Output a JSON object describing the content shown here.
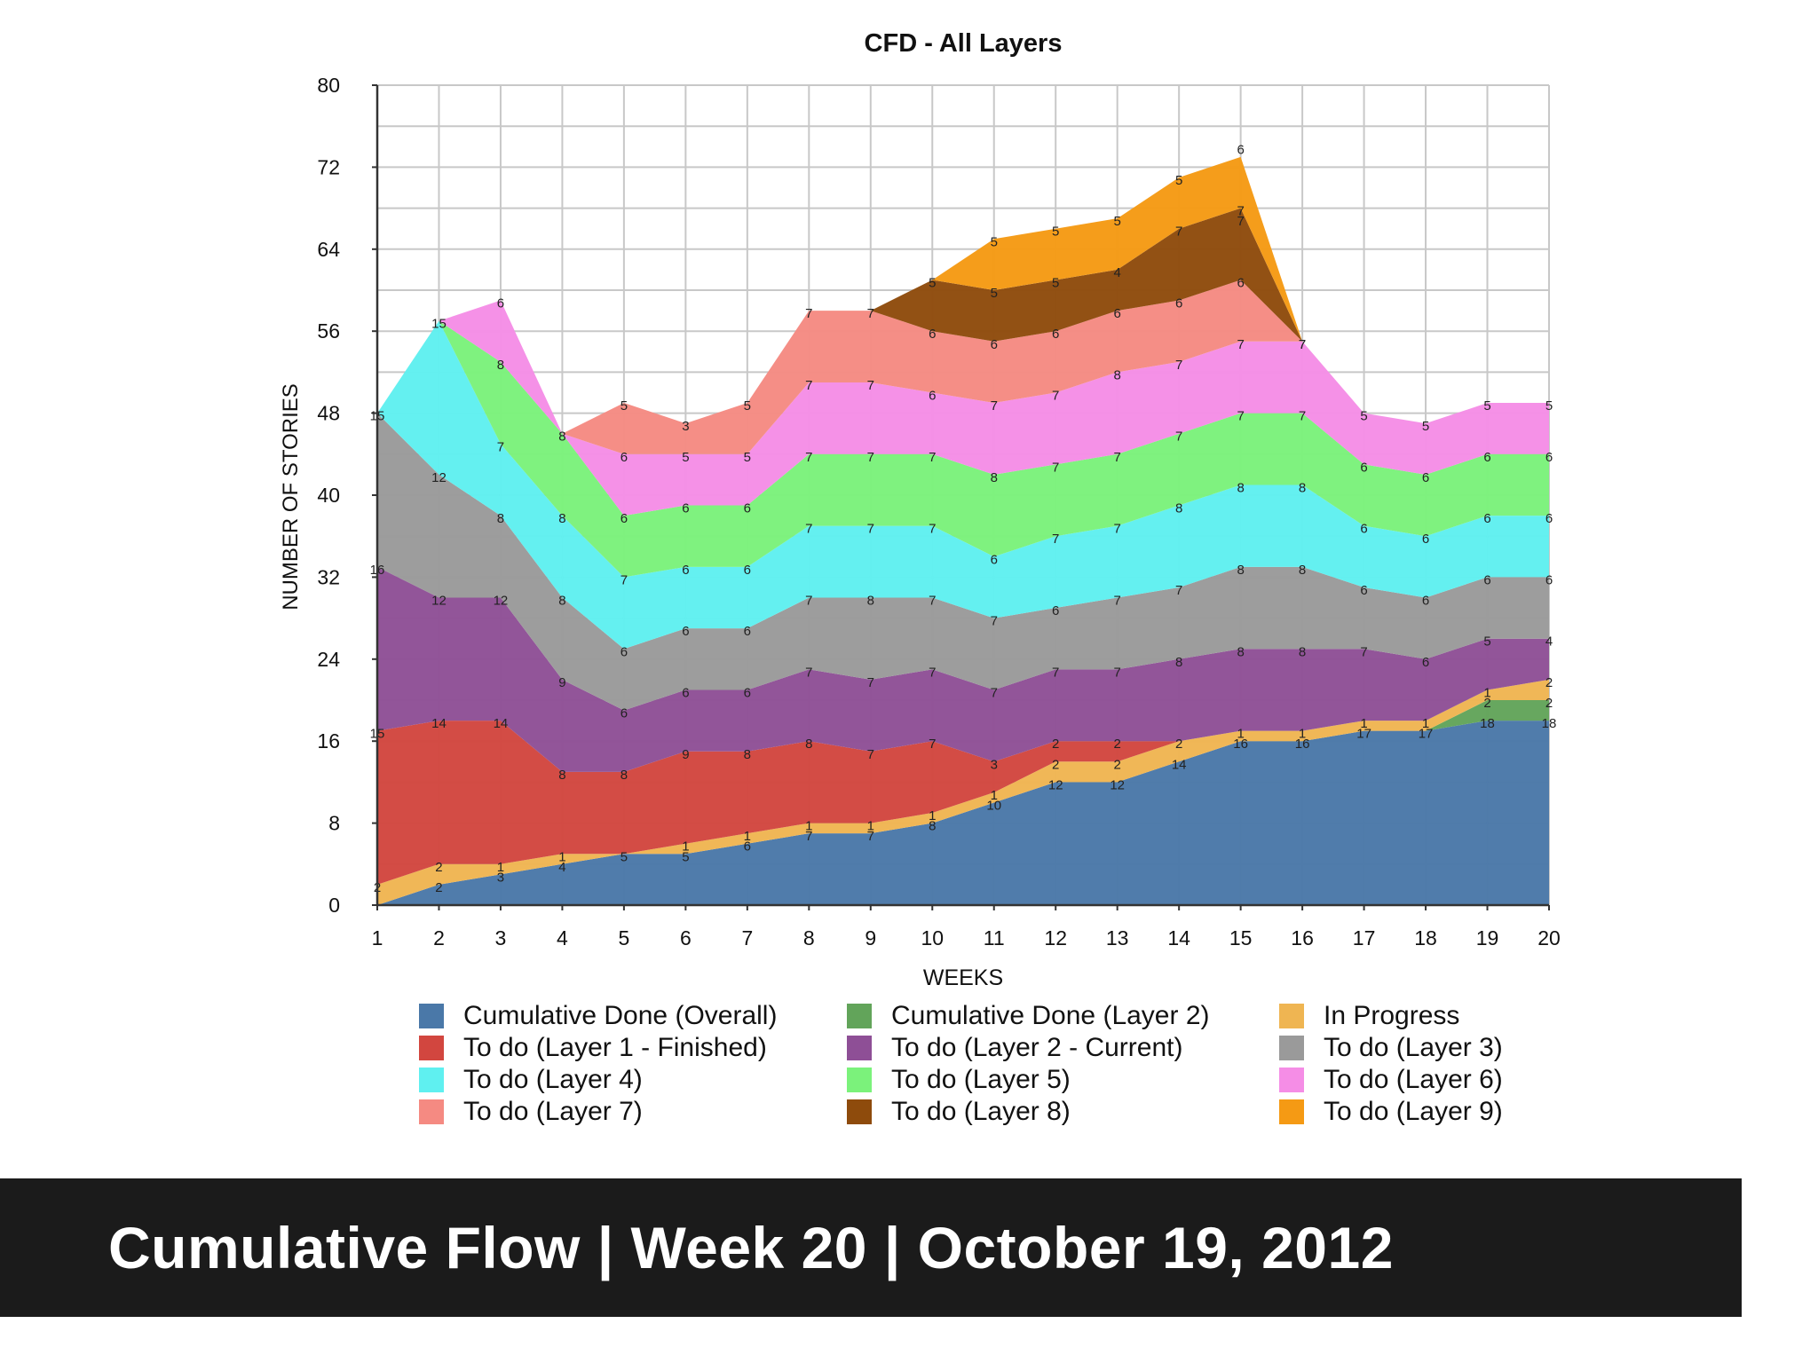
{
  "caption": "Cumulative Flow | Week 20 | October 19, 2012",
  "chart_data": {
    "type": "area",
    "stacked": true,
    "title": "CFD - All Layers",
    "xlabel": "WEEKS",
    "ylabel": "NUMBER OF STORIES",
    "xlim": [
      1,
      20
    ],
    "ylim": [
      0,
      80
    ],
    "x": [
      1,
      2,
      3,
      4,
      5,
      6,
      7,
      8,
      9,
      10,
      11,
      12,
      13,
      14,
      15,
      16,
      17,
      18,
      19,
      20
    ],
    "y_ticks": [
      0,
      8,
      16,
      24,
      32,
      40,
      48,
      56,
      64,
      72,
      80
    ],
    "grid": true,
    "legend_position": "bottom",
    "series": [
      {
        "name": "Cumulative Done (Overall)",
        "color": "#4a78a8",
        "values": [
          0,
          2,
          3,
          4,
          5,
          5,
          6,
          7,
          7,
          8,
          10,
          12,
          12,
          14,
          16,
          16,
          17,
          17,
          18,
          18
        ],
        "labels": [
          "",
          "2",
          "3",
          "4",
          "5",
          "5",
          "6",
          "7",
          "7",
          "8",
          "10",
          "12",
          "12",
          "14",
          "16",
          "16",
          "17",
          "17",
          "18",
          "18"
        ]
      },
      {
        "name": "Cumulative Done (Layer 2)",
        "color": "#62a45a",
        "values": [
          0,
          0,
          0,
          0,
          0,
          0,
          0,
          0,
          0,
          0,
          0,
          0,
          0,
          0,
          0,
          0,
          0,
          0,
          2,
          2
        ],
        "labels": [
          "",
          "",
          "",
          "",
          "",
          "",
          "",
          "",
          "",
          "",
          "",
          "",
          "",
          "",
          "",
          "",
          "",
          "",
          "2",
          "2"
        ]
      },
      {
        "name": "In Progress",
        "color": "#efb552",
        "values": [
          2,
          2,
          1,
          1,
          0,
          1,
          1,
          1,
          1,
          1,
          1,
          2,
          2,
          2,
          1,
          1,
          1,
          1,
          1,
          2
        ],
        "labels": [
          "2",
          "2",
          "1",
          "1",
          "",
          "1",
          "1",
          "1",
          "1",
          "1",
          "1",
          "2",
          "2",
          "2",
          "1",
          "1",
          "1",
          "1",
          "1",
          "2"
        ]
      },
      {
        "name": "To do (Layer 1 - Finished)",
        "color": "#d2463f",
        "values": [
          15,
          14,
          14,
          8,
          8,
          9,
          8,
          8,
          7,
          7,
          3,
          2,
          2,
          0,
          0,
          0,
          0,
          0,
          0,
          0
        ],
        "labels": [
          "15",
          "14",
          "14",
          "8",
          "8",
          "9",
          "8",
          "8",
          "7",
          "7",
          "3",
          "2",
          "2",
          "",
          "",
          "",
          "",
          "",
          "",
          ""
        ]
      },
      {
        "name": "To do (Layer 2 - Current)",
        "color": "#8e4f96",
        "values": [
          16,
          12,
          12,
          9,
          6,
          6,
          6,
          7,
          7,
          7,
          7,
          7,
          7,
          8,
          8,
          8,
          7,
          6,
          5,
          4
        ],
        "labels": [
          "16",
          "12",
          "12",
          "9",
          "6",
          "6",
          "6",
          "7",
          "7",
          "7",
          "7",
          "7",
          "7",
          "8",
          "8",
          "8",
          "7",
          "6",
          "5",
          "4"
        ]
      },
      {
        "name": "To do (Layer 3)",
        "color": "#9a9a9a",
        "values": [
          15,
          12,
          8,
          8,
          6,
          6,
          6,
          7,
          8,
          7,
          7,
          6,
          7,
          7,
          8,
          8,
          6,
          6,
          6,
          6
        ],
        "labels": [
          "15",
          "12",
          "8",
          "8",
          "6",
          "6",
          "6",
          "7",
          "8",
          "7",
          "7",
          "6",
          "7",
          "7",
          "8",
          "8",
          "6",
          "6",
          "6",
          "6"
        ]
      },
      {
        "name": "To do (Layer 4)",
        "color": "#5ff0f0",
        "values": [
          0,
          15,
          7,
          8,
          7,
          6,
          6,
          7,
          7,
          7,
          6,
          7,
          7,
          8,
          8,
          8,
          6,
          6,
          6,
          6
        ],
        "labels": [
          "",
          "15",
          "7",
          "8",
          "7",
          "6",
          "6",
          "7",
          "7",
          "7",
          "6",
          "7",
          "7",
          "8",
          "8",
          "8",
          "6",
          "6",
          "6",
          "6"
        ]
      },
      {
        "name": "To do (Layer 5)",
        "color": "#7bf27b",
        "values": [
          0,
          0,
          8,
          8,
          6,
          6,
          6,
          7,
          7,
          7,
          8,
          7,
          7,
          7,
          7,
          7,
          6,
          6,
          6,
          6
        ],
        "labels": [
          "",
          "",
          "8",
          "8",
          "6",
          "6",
          "6",
          "7",
          "7",
          "7",
          "8",
          "7",
          "7",
          "7",
          "7",
          "7",
          "6",
          "6",
          "6",
          "6"
        ]
      },
      {
        "name": "To do (Layer 6)",
        "color": "#f58de6",
        "values": [
          0,
          0,
          6,
          0,
          6,
          5,
          5,
          7,
          7,
          6,
          7,
          7,
          8,
          7,
          7,
          7,
          5,
          5,
          5,
          5
        ],
        "labels": [
          "",
          "",
          "6",
          "",
          "6",
          "5",
          "5",
          "7",
          "7",
          "6",
          "7",
          "7",
          "8",
          "7",
          "7",
          "7",
          "5",
          "5",
          "5",
          "5"
        ]
      },
      {
        "name": "To do (Layer 7)",
        "color": "#f58a82",
        "values": [
          0,
          0,
          0,
          0,
          5,
          3,
          5,
          7,
          7,
          6,
          6,
          6,
          6,
          6,
          6,
          0,
          0,
          0,
          0,
          0
        ],
        "labels": [
          "",
          "",
          "",
          "",
          "5",
          "3",
          "5",
          "7",
          "7",
          "6",
          "6",
          "6",
          "6",
          "6",
          "6",
          "",
          "",
          "",
          "",
          ""
        ]
      },
      {
        "name": "To do (Layer 8)",
        "color": "#8e4b0c",
        "values": [
          0,
          0,
          0,
          0,
          0,
          0,
          0,
          0,
          0,
          5,
          5,
          5,
          4,
          7,
          7,
          0,
          0,
          0,
          0,
          0
        ],
        "labels": [
          "",
          "",
          "",
          "",
          "",
          "",
          "",
          "",
          "",
          "5",
          "5",
          "5",
          "4",
          "7",
          "7",
          "",
          "",
          "",
          "",
          ""
        ]
      },
      {
        "name": "To do (Layer 9)",
        "color": "#f59a14",
        "values": [
          0,
          0,
          0,
          0,
          0,
          0,
          0,
          0,
          0,
          0,
          5,
          5,
          5,
          5,
          5,
          0,
          0,
          0,
          0,
          0
        ],
        "labels": [
          "",
          "",
          "",
          "",
          "",
          "",
          "",
          "",
          "",
          "",
          "5",
          "5",
          "5",
          "5",
          "",
          "",
          "",
          "",
          "",
          ""
        ]
      }
    ],
    "annotations": [
      {
        "text": "7",
        "x": 16,
        "y": 55
      },
      {
        "text": "7",
        "x": 15,
        "y": 67
      },
      {
        "text": "6",
        "x": 15,
        "y": 74
      }
    ]
  },
  "legend": [
    {
      "label": "Cumulative Done (Overall)",
      "color": "#4a78a8"
    },
    {
      "label": "Cumulative Done (Layer 2)",
      "color": "#62a45a"
    },
    {
      "label": "In Progress",
      "color": "#efb552"
    },
    {
      "label": "To do (Layer 1 - Finished)",
      "color": "#d2463f"
    },
    {
      "label": "To do (Layer 2 - Current)",
      "color": "#8e4f96"
    },
    {
      "label": "To do (Layer 3)",
      "color": "#9a9a9a"
    },
    {
      "label": "To do (Layer 4)",
      "color": "#5ff0f0"
    },
    {
      "label": "To do (Layer 5)",
      "color": "#7bf27b"
    },
    {
      "label": "To do (Layer 6)",
      "color": "#f58de6"
    },
    {
      "label": "To do (Layer 7)",
      "color": "#f58a82"
    },
    {
      "label": "To do (Layer 8)",
      "color": "#8e4b0c"
    },
    {
      "label": "To do (Layer 9)",
      "color": "#f59a14"
    }
  ]
}
